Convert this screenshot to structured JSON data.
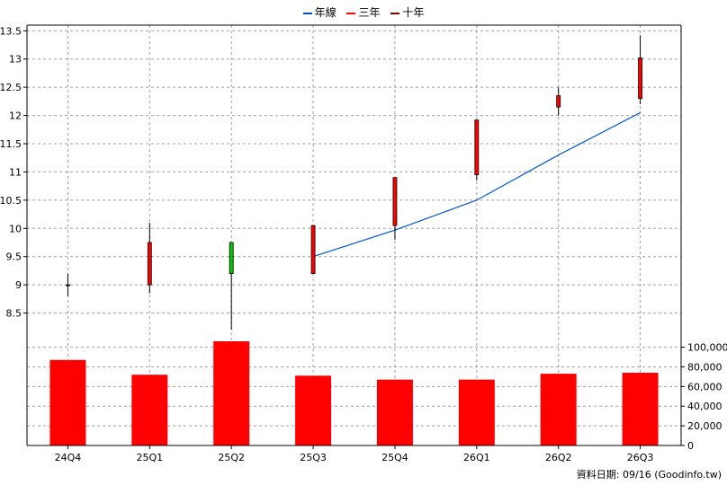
{
  "chart_data": [
    {
      "type": "candlestick",
      "categories": [
        "24Q4",
        "25Q1",
        "25Q2",
        "25Q3",
        "25Q4",
        "26Q1",
        "26Q2",
        "26Q3"
      ],
      "legend": [
        "年線",
        "三年",
        "十年"
      ],
      "legend_colors": [
        "#0055cc",
        "#ff0000",
        "#800000"
      ],
      "ylim": [
        8.0,
        13.6
      ],
      "yticks": [
        "13.5",
        "13",
        "12.5",
        "12",
        "11.5",
        "11",
        "10.5",
        "10",
        "9.5",
        "9",
        "8.5"
      ],
      "candles": [
        {
          "open": 9.0,
          "close": 9.0,
          "high": 9.2,
          "low": 8.8
        },
        {
          "open": 9.0,
          "close": 9.75,
          "high": 10.1,
          "low": 8.85
        },
        {
          "open": 9.75,
          "close": 9.2,
          "high": 9.75,
          "low": 8.2
        },
        {
          "open": 9.2,
          "close": 10.05,
          "high": 10.05,
          "low": 9.2
        },
        {
          "open": 10.05,
          "close": 10.9,
          "high": 10.9,
          "low": 9.8
        },
        {
          "open": 10.95,
          "close": 11.92,
          "high": 11.92,
          "low": 10.85
        },
        {
          "open": 12.15,
          "close": 12.35,
          "high": 12.5,
          "low": 12.0
        },
        {
          "open": 12.3,
          "close": 13.02,
          "high": 13.42,
          "low": 12.2
        }
      ],
      "up_color": "#ff0000",
      "down_color": "#00cc00",
      "series": [
        {
          "name": "年線",
          "color": "#0055cc",
          "values": [
            null,
            null,
            null,
            9.5,
            9.97,
            10.5,
            11.3,
            12.05
          ]
        }
      ]
    },
    {
      "type": "bar",
      "categories": [
        "24Q4",
        "25Q1",
        "25Q2",
        "25Q3",
        "25Q4",
        "26Q1",
        "26Q2",
        "26Q3"
      ],
      "values": [
        87000,
        72000,
        106000,
        71000,
        67000,
        67000,
        73000,
        74000
      ],
      "ylim": [
        0,
        106000
      ],
      "yticks": [
        "100,000",
        "80,000",
        "60,000",
        "40,000",
        "20,000",
        "0"
      ],
      "color": "#ff0000"
    }
  ],
  "source_label": "資料日期: 09/16 (Goodinfo.tw)"
}
